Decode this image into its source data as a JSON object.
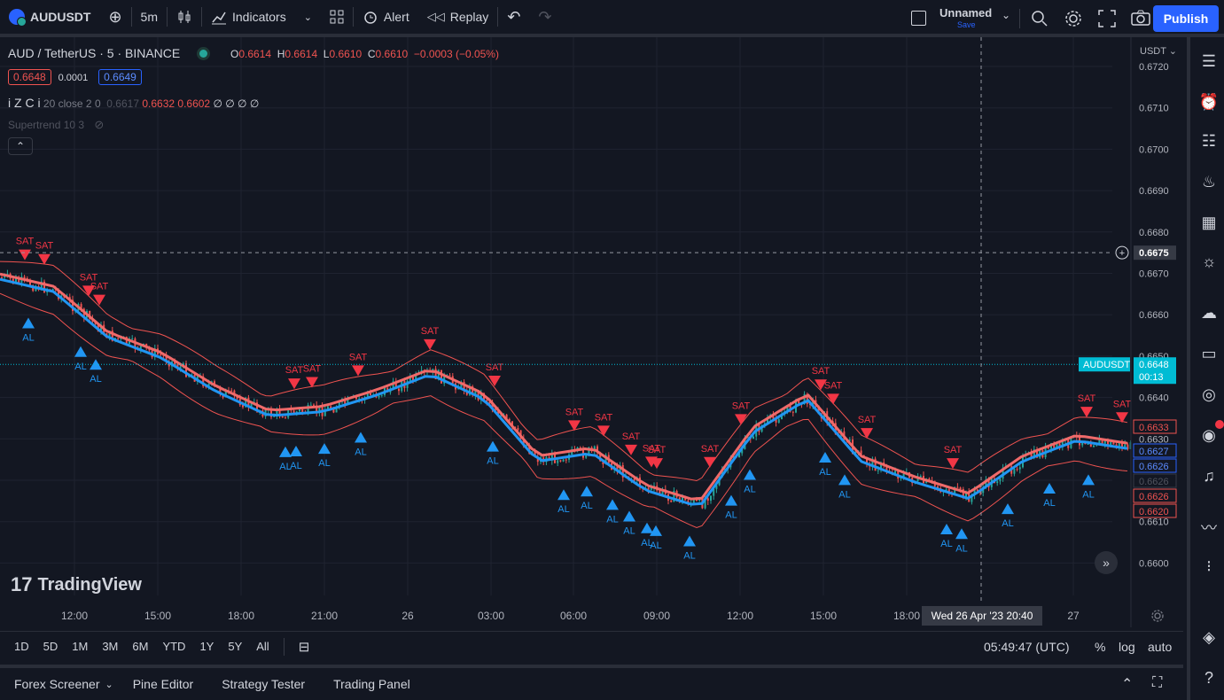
{
  "topbar": {
    "symbol": "AUDUSDT",
    "interval": "5m",
    "indicators_label": "Indicators",
    "alert_label": "Alert",
    "replay_label": "Replay",
    "layout_name": "Unnamed",
    "save_label": "Save",
    "publish_label": "Publish"
  },
  "legend": {
    "pair_title": "AUD / TetherUS · 5 · BINANCE",
    "o_label": "O",
    "o_value": "0.6614",
    "h_label": "H",
    "h_value": "0.6614",
    "l_label": "L",
    "l_value": "0.6610",
    "c_label": "C",
    "c_value": "0.6610",
    "change": "−0.0003 (−0.05%)",
    "bid": "0.6648",
    "spread": "0.0001",
    "ask": "0.6649",
    "indicator1_name": "i Z C i",
    "indicator1_params": "20 close 2 0",
    "indicator1_values": [
      "0.6617",
      "0.6632",
      "0.6602",
      "∅",
      "∅",
      "∅",
      "∅"
    ],
    "indicator2": "Supertrend 10 3"
  },
  "price_axis": {
    "currency": "USDT",
    "ticks": [
      "0.6720",
      "0.6710",
      "0.6700",
      "0.6690",
      "0.6680",
      "0.6670",
      "0.6660",
      "0.6650",
      "0.6640",
      "0.6630",
      "0.6620",
      "0.6610",
      "0.6600"
    ],
    "crosshair_price": "0.6675",
    "last_symbol": "AUDUSDT",
    "last_price": "0.6648",
    "countdown": "00:13",
    "badges": [
      "0.6633",
      "0.6627",
      "0.6626",
      "0.6626",
      "0.6626",
      "0.6620"
    ]
  },
  "time_axis": {
    "ticks": [
      "12:00",
      "15:00",
      "18:00",
      "21:00",
      "26",
      "03:00",
      "06:00",
      "09:00",
      "12:00",
      "15:00",
      "18:00",
      "27"
    ],
    "crosshair_time": "Wed 26 Apr '23   20:40"
  },
  "signals": {
    "sell": "SAT",
    "buy": "AL"
  },
  "watermark": "TradingView",
  "timeframes": [
    "1D",
    "5D",
    "1M",
    "3M",
    "6M",
    "YTD",
    "1Y",
    "5Y",
    "All"
  ],
  "clock": "05:49:47 (UTC)",
  "scale_options": [
    "%",
    "log",
    "auto"
  ],
  "bottom_tabs": [
    "Forex Screener",
    "Pine Editor",
    "Strategy Tester",
    "Trading Panel"
  ],
  "colors": {
    "bg": "#131722",
    "up": "#26a69a",
    "down": "#ef5350",
    "accent": "#2962ff",
    "cyan": "#00bcd4"
  },
  "chart_data": {
    "type": "candlestick",
    "symbol": "AUDUSDT",
    "interval": "5m",
    "ylim": [
      0.6595,
      0.6725
    ],
    "price_line": [
      {
        "t": "10:30",
        "p": 0.6669
      },
      {
        "t": "12:00",
        "p": 0.6666
      },
      {
        "t": "13:00",
        "p": 0.6655
      },
      {
        "t": "15:00",
        "p": 0.665
      },
      {
        "t": "17:00",
        "p": 0.6642
      },
      {
        "t": "19:00",
        "p": 0.6636
      },
      {
        "t": "21:00",
        "p": 0.6637
      },
      {
        "t": "23:00",
        "p": 0.6641
      },
      {
        "t": "01:00",
        "p": 0.6646
      },
      {
        "t": "03:00",
        "p": 0.664
      },
      {
        "t": "05:00",
        "p": 0.6625
      },
      {
        "t": "07:00",
        "p": 0.6627
      },
      {
        "t": "09:00",
        "p": 0.6618
      },
      {
        "t": "11:00",
        "p": 0.6614
      },
      {
        "t": "13:00",
        "p": 0.6632
      },
      {
        "t": "15:00",
        "p": 0.664
      },
      {
        "t": "17:00",
        "p": 0.6625
      },
      {
        "t": "19:00",
        "p": 0.662
      },
      {
        "t": "21:00",
        "p": 0.6616
      },
      {
        "t": "23:00",
        "p": 0.6625
      },
      {
        "t": "01:00",
        "p": 0.663
      },
      {
        "t": "02:30",
        "p": 0.6628
      }
    ],
    "sell_signals": 22,
    "buy_signals": 24
  }
}
